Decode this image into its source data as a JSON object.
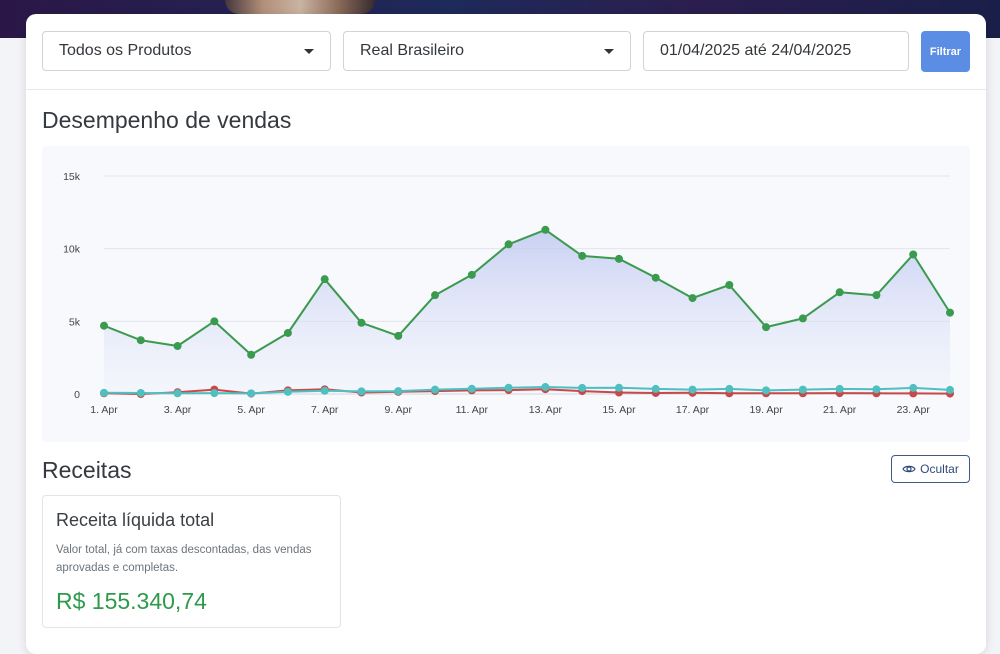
{
  "filters": {
    "product_select": "Todos os Produtos",
    "currency_select": "Real Brasileiro",
    "date_range": "01/04/2025 até 24/04/2025",
    "filter_button": "Filtrar"
  },
  "sales_section": {
    "title": "Desempenho de vendas"
  },
  "chart_data": {
    "type": "area",
    "x_tick_labels": [
      "1. Apr",
      "3. Apr",
      "5. Apr",
      "7. Apr",
      "9. Apr",
      "11. Apr",
      "13. Apr",
      "15. Apr",
      "17. Apr",
      "19. Apr",
      "21. Apr",
      "23. Apr"
    ],
    "y_tick_labels": [
      "0",
      "5k",
      "10k",
      "15k"
    ],
    "ylim": [
      0,
      15000
    ],
    "grid": true,
    "x": [
      1,
      2,
      3,
      4,
      5,
      6,
      7,
      8,
      9,
      10,
      11,
      12,
      13,
      14,
      15,
      16,
      17,
      18,
      19,
      20,
      21,
      22,
      23,
      24
    ],
    "series": [
      {
        "color": "#3a9a4d",
        "filled": true,
        "values": [
          4700,
          3700,
          3300,
          5000,
          2700,
          4200,
          7900,
          4900,
          4000,
          6800,
          8200,
          10300,
          11300,
          9500,
          9300,
          8000,
          6600,
          7500,
          4600,
          5200,
          7000,
          6800,
          9600,
          5600
        ]
      },
      {
        "color": "#c74949",
        "filled": false,
        "values": [
          50,
          0,
          120,
          300,
          30,
          250,
          320,
          100,
          150,
          200,
          250,
          270,
          330,
          200,
          100,
          70,
          80,
          50,
          50,
          50,
          60,
          50,
          40,
          30
        ]
      },
      {
        "color": "#4fbfbf",
        "filled": false,
        "values": [
          80,
          70,
          50,
          60,
          40,
          150,
          220,
          180,
          200,
          300,
          360,
          430,
          480,
          420,
          430,
          350,
          300,
          350,
          250,
          300,
          350,
          320,
          420,
          280
        ]
      }
    ]
  },
  "revenue_section": {
    "title": "Receitas",
    "hide_button": "Ocultar",
    "hide_icon": "eye-icon"
  },
  "revenue_card": {
    "title": "Receita líquida total",
    "description": "Valor total, já com taxas descontadas, das vendas aprovadas e completas.",
    "value": "R$ 155.340,74"
  },
  "colors": {
    "accent": "#5b8de4",
    "positive": "#2e9a4c"
  }
}
